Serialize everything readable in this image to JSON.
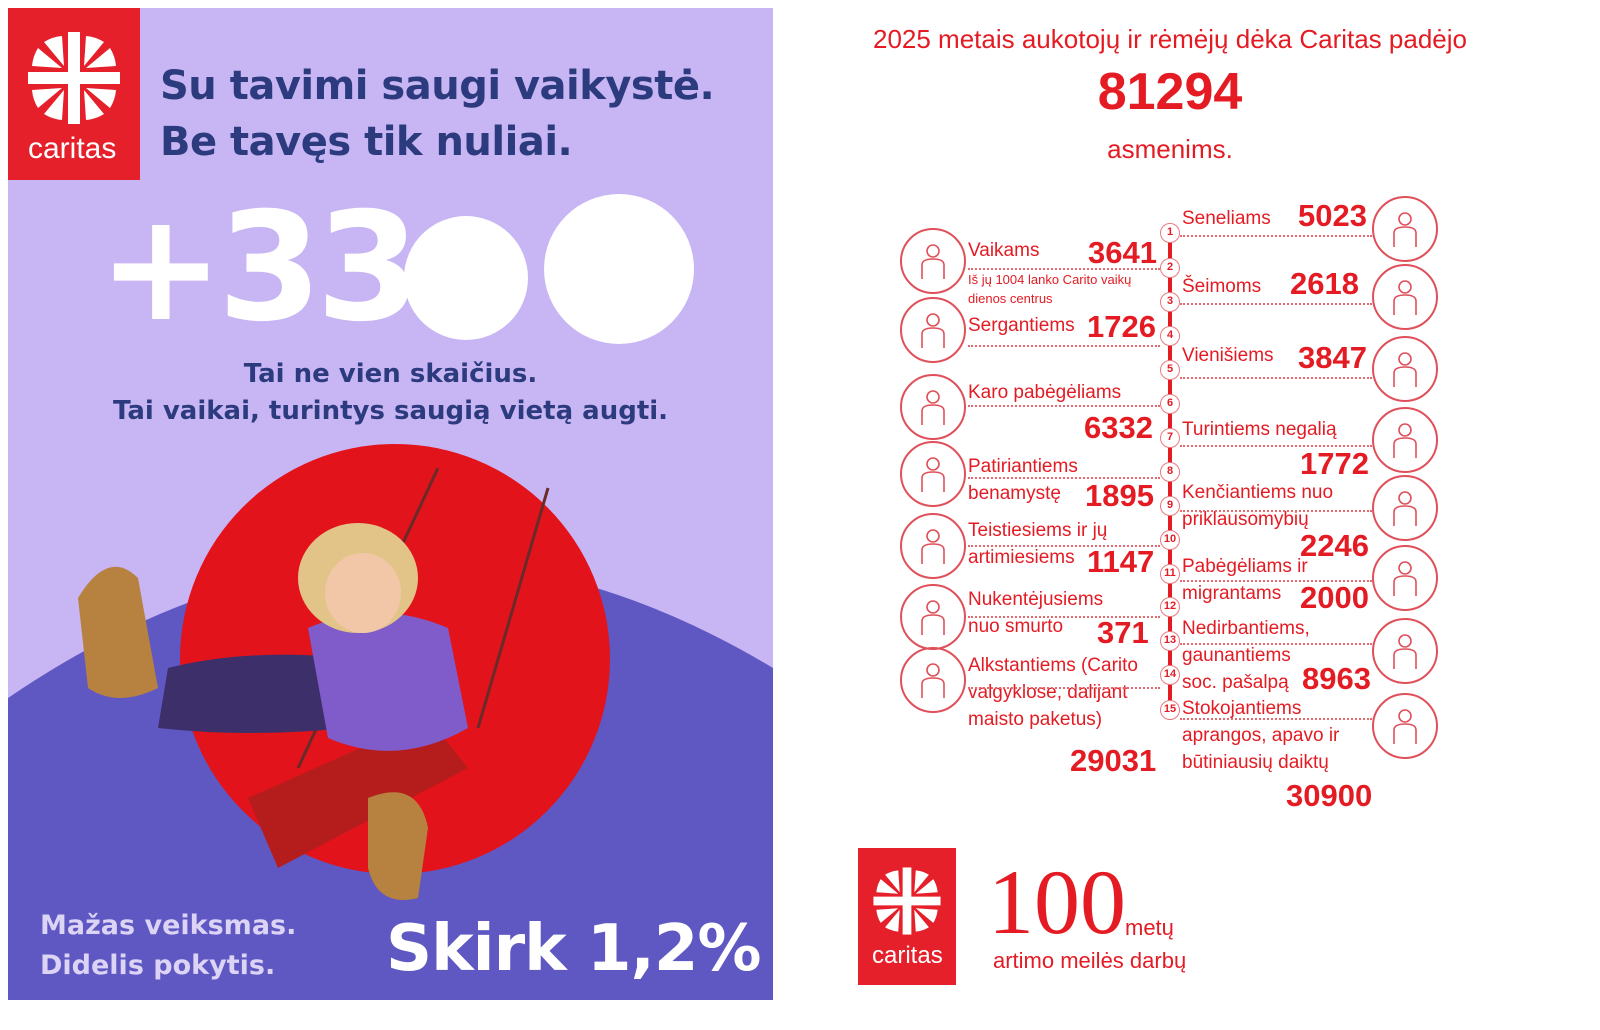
{
  "poster": {
    "logo_text": "caritas",
    "headline": [
      "Su tavimi saugi vaikystė.",
      "Be tavęs tik nuliai."
    ],
    "big_number": "+33",
    "subtitle": [
      "Tai ne vien skaičius.",
      "Tai vaikai, turintys saugią vietą augti."
    ],
    "bottom_left": [
      "Mažas veiksmas.",
      "Didelis pokytis."
    ],
    "cta": "Skirk 1,2%",
    "colors": {
      "background": "#c8b5f4",
      "arc": "#5f57c2",
      "red": "#e3131b",
      "navy": "#2c3b7e"
    }
  },
  "infographic": {
    "title": "2025 metais aukotojų ir rėmėjų  dėka Caritas padėjo",
    "total": "81294",
    "unit": "asmenims.",
    "accent_color": "#e41b23",
    "entries": [
      {
        "nr": "1",
        "side": "right",
        "lines": [
          "Seneliams"
        ],
        "number": "5023",
        "icon": "elderly-couple-icon"
      },
      {
        "nr": "2",
        "side": "left",
        "lines": [
          "Vaikams"
        ],
        "note": [
          "Iš jų 1004 lanko Carito vaikų",
          "dienos centrus"
        ],
        "number": "3641",
        "icon": "children-icon"
      },
      {
        "nr": "3",
        "side": "right",
        "lines": [
          "Šeimoms"
        ],
        "number": "2618",
        "icon": "family-icon"
      },
      {
        "nr": "4",
        "side": "left",
        "lines": [
          "Sergantiems"
        ],
        "number": "1726",
        "icon": "hospital-bed-icon"
      },
      {
        "nr": "5",
        "side": "right",
        "lines": [
          "Vienišiems"
        ],
        "number": "3847",
        "icon": "person-icon"
      },
      {
        "nr": "6",
        "side": "left",
        "lines": [
          "Karo pabėgėliams"
        ],
        "number": "6332",
        "icon": "war-refugees-icon"
      },
      {
        "nr": "7",
        "side": "right",
        "lines": [
          "Turintiems negalią"
        ],
        "number": "1772",
        "icon": "disability-icon"
      },
      {
        "nr": "8",
        "side": "left",
        "lines": [
          "Patiriantiems",
          "benamystę"
        ],
        "number": "1895",
        "icon": "homeless-bench-icon"
      },
      {
        "nr": "9",
        "side": "right",
        "lines": [
          "Kenčiantiems nuo",
          "priklausomybių"
        ],
        "number": "2246",
        "icon": "no-addiction-icon"
      },
      {
        "nr": "10",
        "side": "left",
        "lines": [
          "Teistiesiems ir jų",
          "artimiesiems"
        ],
        "number": "1147",
        "icon": "prison-bars-icon"
      },
      {
        "nr": "11",
        "side": "right",
        "lines": [
          "Pabėgėliams ir",
          "migrantams"
        ],
        "number": "2000",
        "icon": "migrants-icon"
      },
      {
        "nr": "12",
        "side": "left",
        "lines": [
          "Nukentėjusiems",
          "nuo smurto"
        ],
        "number": "371",
        "icon": "crying-person-icon"
      },
      {
        "nr": "13",
        "side": "right",
        "lines": [
          "Nedirbantiems,",
          "gaunantiems",
          "soc. pašalpą"
        ],
        "number": "8963",
        "icon": "broken-piggy-bank-icon"
      },
      {
        "nr": "14",
        "side": "left",
        "lines": [
          "Alkstantiems (Carito",
          "valgyklose, dalijant",
          "maisto paketus)"
        ],
        "number": "29031",
        "icon": "plate-cutlery-icon"
      },
      {
        "nr": "15",
        "side": "right",
        "lines": [
          "Stokojantiems",
          "aprangos, apavo ir",
          "būtiniausių daiktų"
        ],
        "number": "30900",
        "icon": "clothing-shoes-icon"
      }
    ],
    "footer": {
      "logo_text": "caritas",
      "years": "100",
      "years_unit": "metų",
      "tagline": "artimo meilės darbų"
    }
  }
}
